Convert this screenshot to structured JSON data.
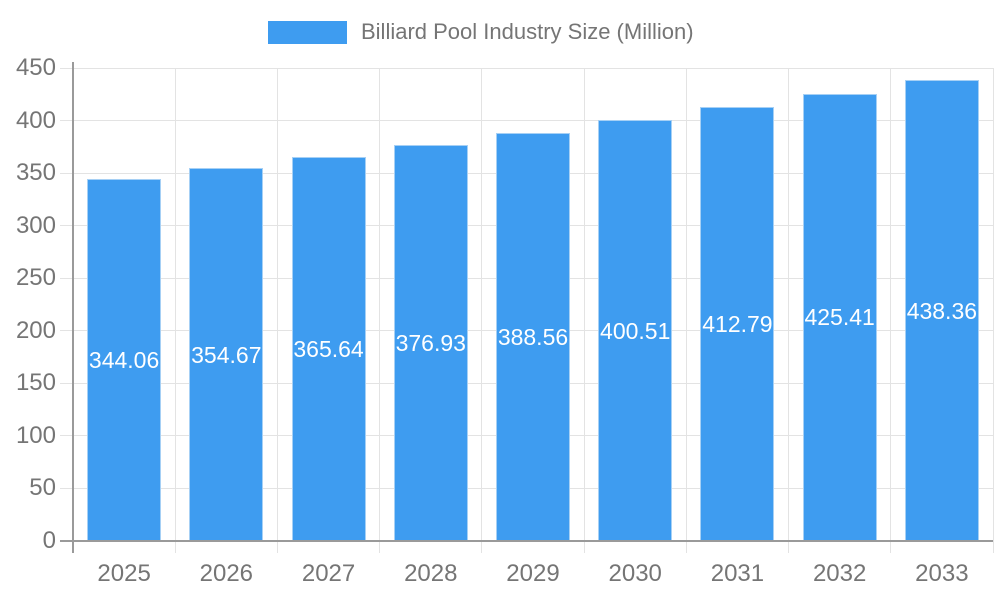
{
  "chart_data": {
    "type": "bar",
    "title": "Billiard Pool Industry Size (Million)",
    "categories": [
      "2025",
      "2026",
      "2027",
      "2028",
      "2029",
      "2030",
      "2031",
      "2032",
      "2033"
    ],
    "values": [
      344.06,
      354.67,
      365.64,
      376.93,
      388.56,
      400.51,
      412.79,
      425.41,
      438.36
    ],
    "value_labels": [
      "344.06",
      "354.67",
      "365.64",
      "376.93",
      "388.56",
      "400.51",
      "412.79",
      "425.41",
      "438.36"
    ],
    "xlabel": "",
    "ylabel": "",
    "ylim": [
      0,
      450
    ],
    "ytick_step": 50,
    "ytick_labels": [
      "0",
      "50",
      "100",
      "150",
      "200",
      "250",
      "300",
      "350",
      "400",
      "450"
    ],
    "grid": "on",
    "legend_position": "top-center",
    "value_label_position": "inside-middle"
  },
  "colors": {
    "bar": "#3E9CF0",
    "bar_border": "#A6D0F5",
    "grid": "#E3E3E3",
    "axis": "#9A9A9A",
    "text_muted": "#757575",
    "value_label": "#FFFFFF",
    "background": "#FFFFFF"
  }
}
